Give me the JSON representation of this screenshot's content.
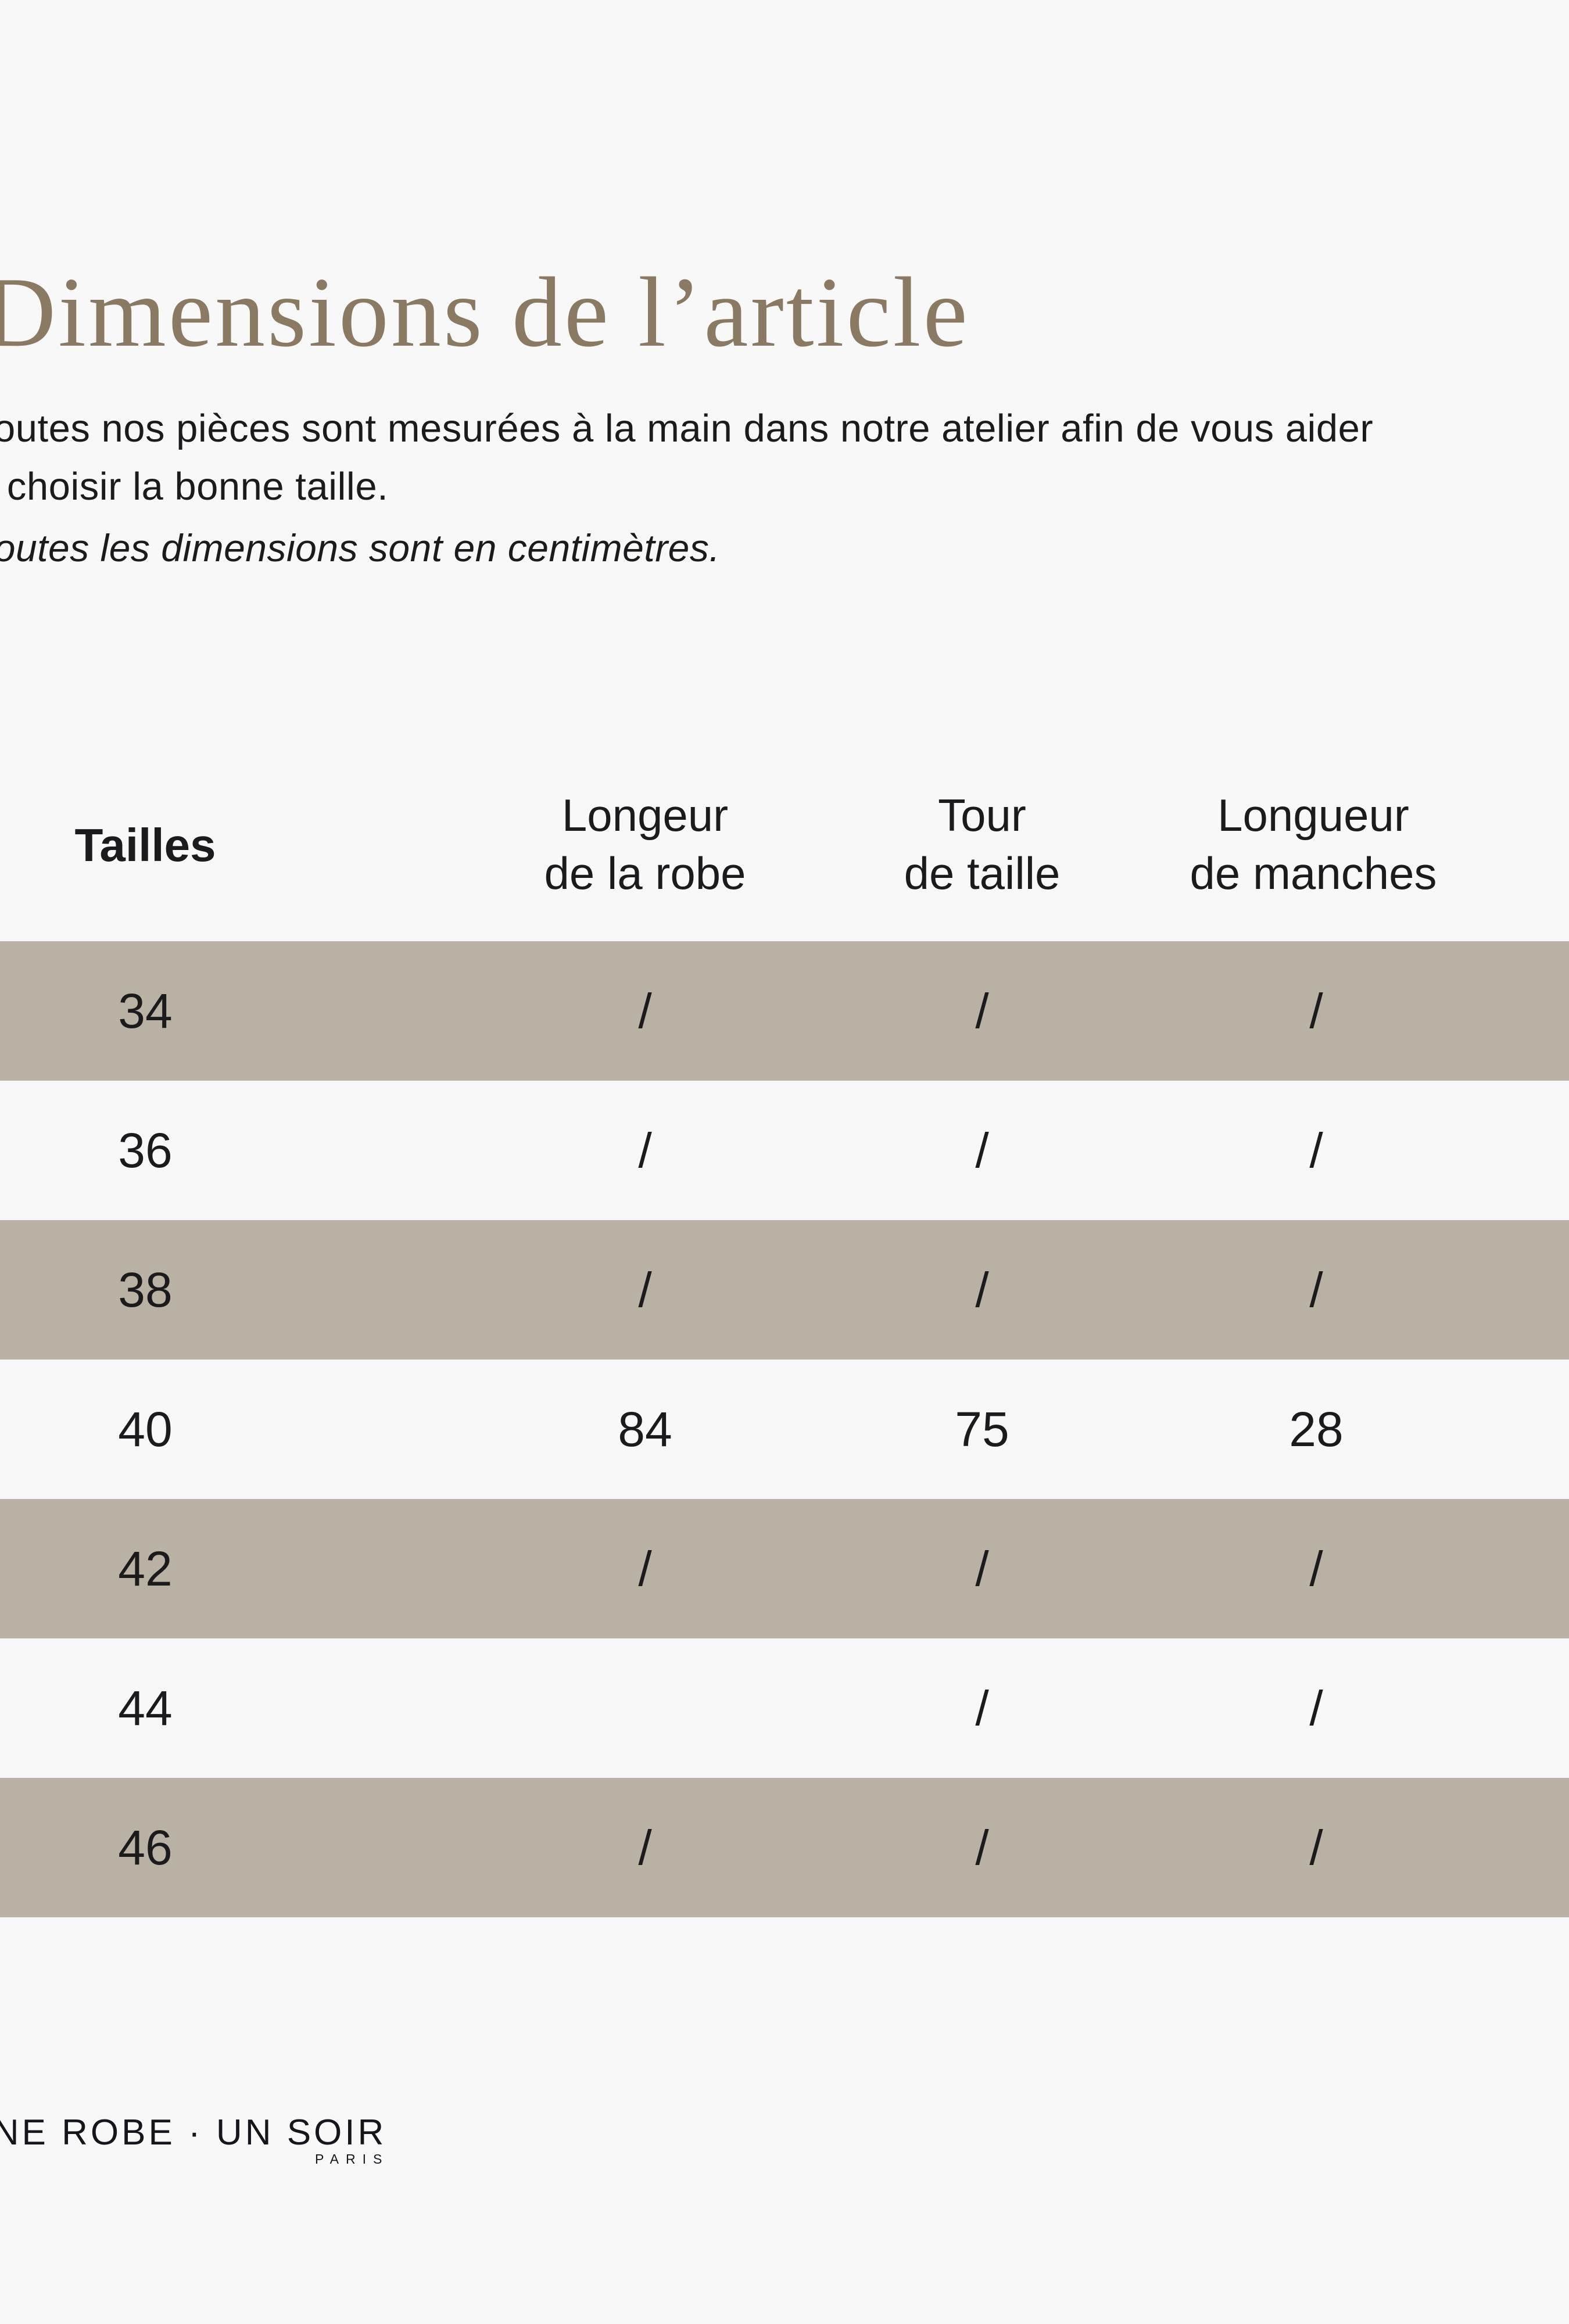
{
  "meta": {
    "background": "#f8f8f8",
    "stripe_color": "#bab1a5",
    "title_color": "#8a7a64",
    "text_color": "#1b1b1d"
  },
  "title": "Dimensions de l’article",
  "intro": {
    "line1": "Toutes nos pièces sont mesurées à la main dans notre atelier afin de vous aider",
    "line2": "à choisir la bonne taille.",
    "note": "Toutes les dimensions sont en centimètres."
  },
  "table": {
    "columns": [
      {
        "line1": "Tailles",
        "line2": ""
      },
      {
        "line1": "Longeur",
        "line2": "de la robe"
      },
      {
        "line1": "Tour",
        "line2": "de taille"
      },
      {
        "line1": "Longueur",
        "line2": "de manches"
      }
    ],
    "rows": [
      {
        "size": "34",
        "robe": "/",
        "taille": "/",
        "manches": "/"
      },
      {
        "size": "36",
        "robe": "/",
        "taille": "/",
        "manches": "/"
      },
      {
        "size": "38",
        "robe": "/",
        "taille": "/",
        "manches": "/"
      },
      {
        "size": "40",
        "robe": "84",
        "taille": "75",
        "manches": "28"
      },
      {
        "size": "42",
        "robe": "/",
        "taille": "/",
        "manches": "/"
      },
      {
        "size": "44",
        "robe": "",
        "taille": "/",
        "manches": "/"
      },
      {
        "size": "46",
        "robe": "/",
        "taille": "/",
        "manches": "/"
      }
    ]
  },
  "footer": {
    "brand": "UNE ROBE · UN SOIR",
    "city": "PARIS"
  }
}
